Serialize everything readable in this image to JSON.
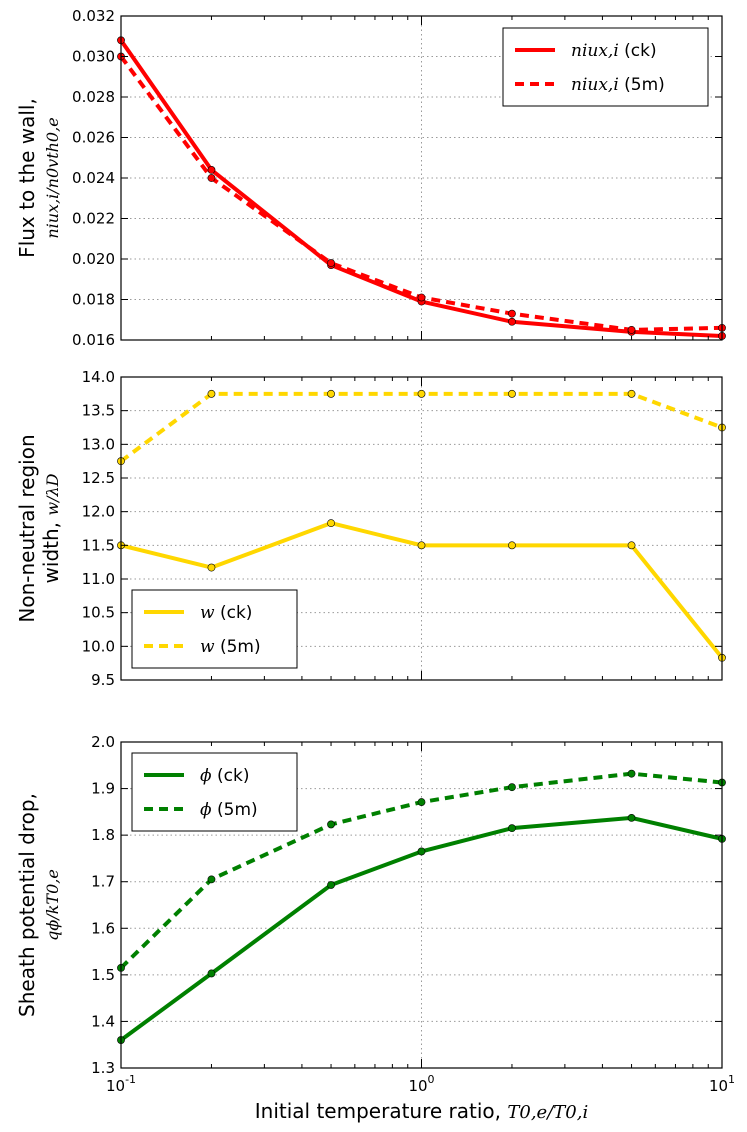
{
  "figure": {
    "xlabel_text": "Initial temperature ratio, ",
    "xlabel_math": "T0,e/T0,i"
  },
  "chart_data": [
    {
      "type": "line",
      "id": "flux",
      "ylabel_text": "Flux to the wall,",
      "ylabel_math": "niux,i/n0vth0,e",
      "x": [
        0.1,
        0.2,
        0.5,
        1,
        2,
        5,
        10
      ],
      "ylim": [
        0.016,
        0.032
      ],
      "yticks": [
        0.016,
        0.018,
        0.02,
        0.022,
        0.024,
        0.026,
        0.028,
        0.03,
        0.032
      ],
      "ytick_labels": [
        "0.016",
        "0.018",
        "0.020",
        "0.022",
        "0.024",
        "0.026",
        "0.028",
        "0.030",
        "0.032"
      ],
      "legend_position": "top-right",
      "series": [
        {
          "name_math": "niux,i",
          "name_suffix": " (ck)",
          "style": "solid",
          "color": "#ff0000",
          "values": [
            0.0308,
            0.0244,
            0.0197,
            0.0179,
            0.0169,
            0.0164,
            0.0162
          ]
        },
        {
          "name_math": "niux,i",
          "name_suffix": " (5m)",
          "style": "dashed",
          "color": "#ff0000",
          "values": [
            0.03,
            0.024,
            0.0198,
            0.0181,
            0.0173,
            0.0165,
            0.0166
          ]
        }
      ]
    },
    {
      "type": "line",
      "id": "width",
      "ylabel_text": "Non-neutral region",
      "ylabel_text2": "width, ",
      "ylabel_math": "w/λD",
      "x": [
        0.1,
        0.2,
        0.5,
        1,
        2,
        5,
        10
      ],
      "ylim": [
        9.5,
        14.0
      ],
      "yticks": [
        9.5,
        10.0,
        10.5,
        11.0,
        11.5,
        12.0,
        12.5,
        13.0,
        13.5,
        14.0
      ],
      "ytick_labels": [
        "9.5",
        "10.0",
        "10.5",
        "11.0",
        "11.5",
        "12.0",
        "12.5",
        "13.0",
        "13.5",
        "14.0"
      ],
      "legend_position": "bottom-left",
      "series": [
        {
          "name_math": "w",
          "name_suffix": " (ck)",
          "style": "solid",
          "color": "#ffd700",
          "values": [
            11.5,
            11.17,
            11.83,
            11.5,
            11.5,
            11.5,
            9.83
          ]
        },
        {
          "name_math": "w",
          "name_suffix": " (5m)",
          "style": "dashed",
          "color": "#ffd700",
          "values": [
            12.75,
            13.75,
            13.75,
            13.75,
            13.75,
            13.75,
            13.25
          ]
        }
      ]
    },
    {
      "type": "line",
      "id": "potential",
      "ylabel_text": "Sheath potential drop,",
      "ylabel_math": "qϕ/kT0,e",
      "x": [
        0.1,
        0.2,
        0.5,
        1,
        2,
        5,
        10
      ],
      "ylim": [
        1.3,
        2.0
      ],
      "yticks": [
        1.3,
        1.4,
        1.5,
        1.6,
        1.7,
        1.8,
        1.9,
        2.0
      ],
      "ytick_labels": [
        "1.3",
        "1.4",
        "1.5",
        "1.6",
        "1.7",
        "1.8",
        "1.9",
        "2.0"
      ],
      "legend_position": "top-left",
      "series": [
        {
          "name_math": "ϕ",
          "name_suffix": " (ck)",
          "style": "solid",
          "color": "#008000",
          "values": [
            1.36,
            1.503,
            1.693,
            1.765,
            1.815,
            1.837,
            1.792
          ]
        },
        {
          "name_math": "ϕ",
          "name_suffix": " (5m)",
          "style": "dashed",
          "color": "#008000",
          "values": [
            1.515,
            1.705,
            1.823,
            1.871,
            1.903,
            1.932,
            1.913
          ]
        }
      ]
    }
  ],
  "xaxis": {
    "scale": "log",
    "xlim": [
      0.1,
      10
    ],
    "ticks": [
      0.1,
      1,
      10
    ],
    "tick_base": "10",
    "tick_exponents": [
      "-1",
      "0",
      "1"
    ]
  }
}
